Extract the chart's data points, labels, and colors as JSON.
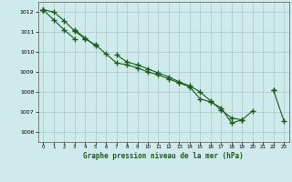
{
  "xlabel": "Graphe pression niveau de la mer (hPa)",
  "ylim": [
    1005.5,
    1012.5
  ],
  "xlim": [
    -0.5,
    23.5
  ],
  "background_color": "#ceeaea",
  "grid_color": "#aecece",
  "line_color": "#1a5c1a",
  "marker": "+",
  "markersize": 4,
  "linewidth": 0.8,
  "yticks": [
    1006,
    1007,
    1008,
    1009,
    1010,
    1011,
    1012
  ],
  "xticks": [
    0,
    1,
    2,
    3,
    4,
    5,
    6,
    7,
    8,
    9,
    10,
    11,
    12,
    13,
    14,
    15,
    16,
    17,
    18,
    19,
    20,
    21,
    22,
    23
  ],
  "series": [
    [
      1012.1,
      1012.0,
      1011.55,
      1011.05,
      1010.65,
      1010.35,
      1009.9,
      1009.45,
      1009.35,
      1009.2,
      1009.0,
      1008.85,
      1008.65,
      1008.45,
      1008.25,
      1007.65,
      1007.5,
      1007.2,
      1006.45,
      1006.6,
      1007.05,
      null,
      null,
      null
    ],
    [
      1012.1,
      null,
      null,
      1011.1,
      1010.7,
      1010.3,
      null,
      1009.85,
      1009.5,
      1009.35,
      1009.15,
      1008.95,
      1008.75,
      1008.5,
      1008.3,
      1008.0,
      1007.55,
      1007.1,
      1006.7,
      1006.6,
      null,
      null,
      1008.1,
      null
    ],
    [
      1012.1,
      1011.6,
      1011.1,
      1010.65,
      null,
      null,
      null,
      null,
      null,
      null,
      null,
      null,
      null,
      null,
      null,
      null,
      null,
      null,
      null,
      null,
      null,
      null,
      null,
      null
    ],
    [
      1012.1,
      null,
      null,
      null,
      null,
      null,
      null,
      null,
      null,
      null,
      null,
      null,
      null,
      null,
      null,
      null,
      null,
      null,
      null,
      null,
      null,
      null,
      1008.1,
      1006.55
    ]
  ]
}
